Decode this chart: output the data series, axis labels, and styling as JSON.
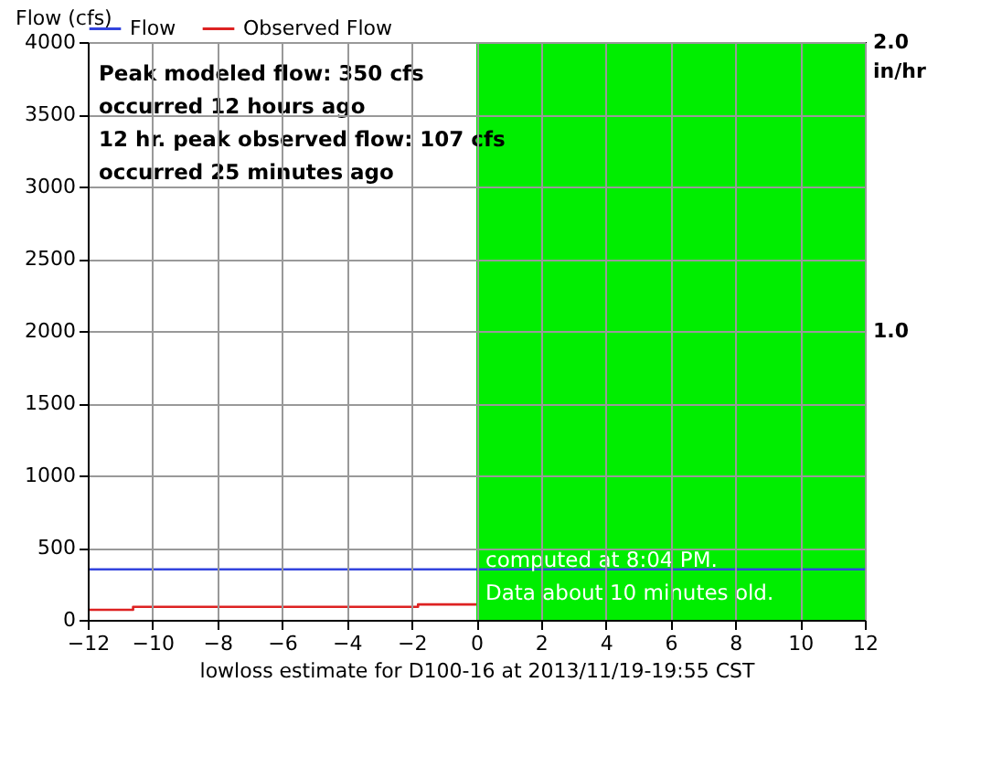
{
  "chart_data": {
    "type": "line",
    "xlabel": "lowloss estimate for D100-16 at 2013/11/19-19:55 CST",
    "ylabel": "Flow (cfs)",
    "y2label": "in/hr",
    "xlim": [
      -12,
      12
    ],
    "xticks": [
      -12,
      -10,
      -8,
      -6,
      -4,
      -2,
      0,
      2,
      4,
      6,
      8,
      10,
      12
    ],
    "ylim": [
      0,
      4000
    ],
    "yticks": [
      0,
      500,
      1000,
      1500,
      2000,
      2500,
      3000,
      3500,
      4000
    ],
    "y2lim": [
      0,
      2
    ],
    "y2ticks": [
      {
        "value": 1,
        "label": "1.0"
      },
      {
        "value": 2,
        "label": "2.0"
      }
    ],
    "series": [
      {
        "name": "Flow",
        "color": "#3344dd",
        "type": "line",
        "x": [
          -12,
          12
        ],
        "values": [
          350,
          350
        ]
      },
      {
        "name": "Observed Flow",
        "color": "#dd2222",
        "type": "step",
        "x": [
          -12,
          -10.6,
          -1.8,
          0
        ],
        "values": [
          70,
          90,
          107,
          107
        ]
      }
    ],
    "bands": [
      {
        "axis": "x",
        "from": 0,
        "to": 12,
        "color": "#00ee00"
      }
    ],
    "annotations": [
      "Peak modeled flow: 350 cfs",
      "occurred 12 hours ago",
      "12 hr. peak observed flow: 107 cfs",
      "occurred 25 minutes ago",
      "computed at 8:04 PM.",
      "Data about 10 minutes old."
    ],
    "grid": true,
    "legend": "top"
  }
}
